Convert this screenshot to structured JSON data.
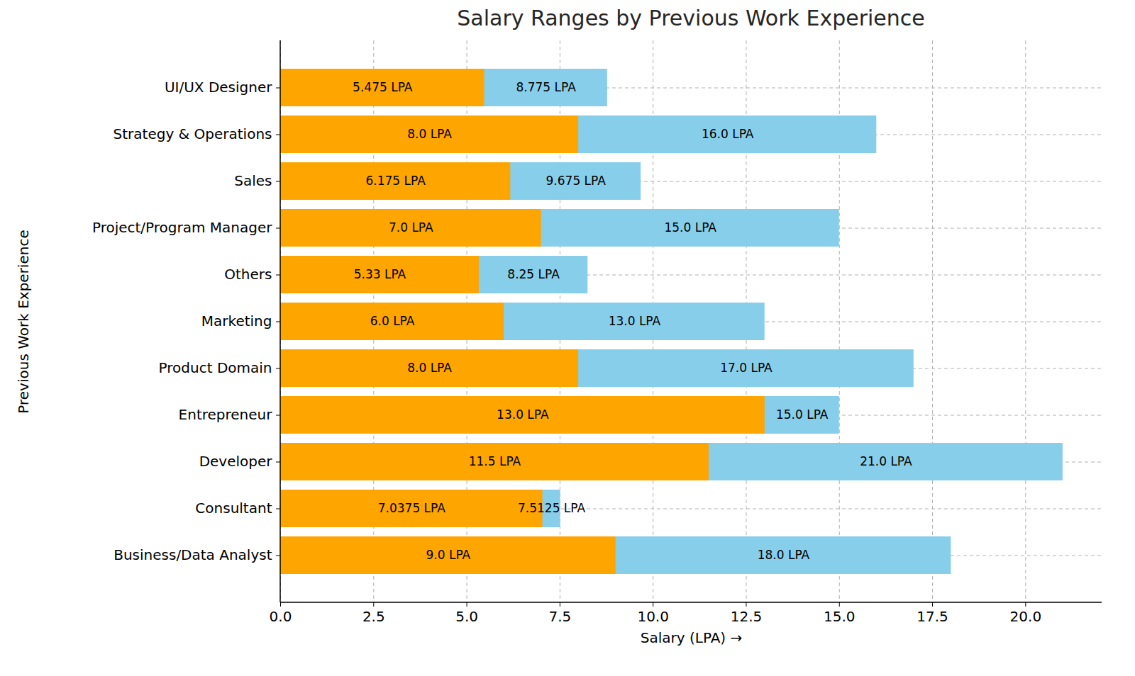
{
  "chart_data": {
    "type": "bar",
    "title": "Salary Ranges by Previous Work Experience",
    "orientation": "horizontal",
    "stacked": false,
    "grid": true,
    "data_labels": true,
    "xlabel": "Salary (LPA)",
    "ylabel": "Previous Work Experience",
    "categories": [
      "UI/UX Designer",
      "Strategy & Operations",
      "Sales",
      "Project/Program Manager",
      "Others",
      "Marketing",
      "Product Domain",
      "Entrepreneur",
      "Developer",
      "Consultant",
      "Business/Data Analyst"
    ],
    "series": [
      {
        "color": "#87ceeb",
        "values": [
          8.775,
          16.0,
          9.675,
          15.0,
          8.25,
          13.0,
          17.0,
          15.0,
          21.0,
          7.5125,
          18.0
        ],
        "value_labels": [
          "8.775 LPA",
          "16.0 LPA",
          "9.675 LPA",
          "15.0 LPA",
          "8.25 LPA",
          "13.0 LPA",
          "17.0 LPA",
          "15.0 LPA",
          "21.0 LPA",
          "7.5125 LPA",
          "18.0 LPA"
        ]
      },
      {
        "color": "#ffa500",
        "values": [
          5.475,
          8.0,
          6.175,
          7.0,
          5.33,
          6.0,
          8.0,
          13.0,
          11.5,
          7.0375,
          9.0
        ],
        "value_labels": [
          "5.475 LPA",
          "8.0 LPA",
          "6.175 LPA",
          "7.0 LPA",
          "5.33 LPA",
          "6.0 LPA",
          "8.0 LPA",
          "13.0 LPA",
          "11.5 LPA",
          "7.0375 LPA",
          "9.0 LPA"
        ]
      }
    ],
    "xlim": [
      0,
      22.05
    ],
    "xticks": [
      {
        "value": 0,
        "label": "0.0"
      },
      2.5,
      {
        "value": 5,
        "label": "5.0"
      },
      7.5,
      {
        "value": 10,
        "label": "10.0"
      },
      12.5,
      {
        "value": 15,
        "label": "15.0"
      },
      17.5,
      {
        "value": 20,
        "label": "20.0"
      }
    ]
  }
}
